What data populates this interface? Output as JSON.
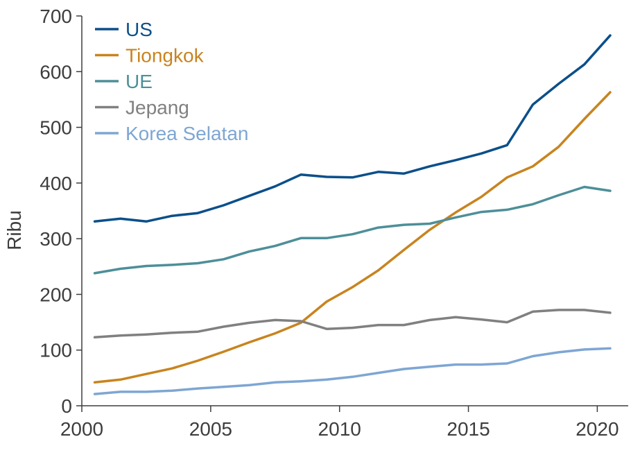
{
  "chart_data": {
    "type": "line",
    "title": "",
    "xlabel": "",
    "ylabel": "Ribu",
    "xlim": [
      2000,
      2021.2
    ],
    "ylim": [
      0,
      700
    ],
    "x_ticks": [
      2000,
      2005,
      2010,
      2015,
      2020
    ],
    "y_ticks": [
      0,
      100,
      200,
      300,
      400,
      500,
      600,
      700
    ],
    "grid": false,
    "legend_position": "top-left",
    "x": [
      2000.5,
      2001.5,
      2002.5,
      2003.5,
      2004.5,
      2005.5,
      2006.5,
      2007.5,
      2008.5,
      2009.5,
      2010.5,
      2011.5,
      2012.5,
      2013.5,
      2014.5,
      2015.5,
      2016.5,
      2017.5,
      2018.5,
      2019.5,
      2020.5
    ],
    "series": [
      {
        "name": "US",
        "color": "#0b4f8a",
        "values": [
          331,
          336,
          331,
          341,
          346,
          360,
          377,
          394,
          415,
          411,
          410,
          420,
          417,
          430,
          441,
          453,
          468,
          541,
          578,
          613,
          665
        ]
      },
      {
        "name": "Tiongkok",
        "color": "#c8841e",
        "values": [
          42,
          47,
          57,
          67,
          81,
          97,
          114,
          130,
          149,
          187,
          213,
          243,
          280,
          316,
          347,
          375,
          410,
          430,
          465,
          515,
          563
        ]
      },
      {
        "name": "UE",
        "color": "#4d8f99",
        "values": [
          238,
          246,
          251,
          253,
          256,
          263,
          277,
          287,
          301,
          301,
          308,
          320,
          325,
          327,
          338,
          348,
          352,
          362,
          378,
          393,
          386
        ]
      },
      {
        "name": "Jepang",
        "color": "#808080",
        "values": [
          123,
          126,
          128,
          131,
          133,
          142,
          149,
          154,
          152,
          138,
          140,
          145,
          145,
          154,
          159,
          155,
          150,
          169,
          172,
          172,
          167
        ]
      },
      {
        "name": "Korea Selatan",
        "color": "#7ea6d3",
        "values": [
          21,
          25,
          25,
          27,
          31,
          34,
          37,
          42,
          44,
          47,
          52,
          59,
          66,
          70,
          74,
          74,
          76,
          89,
          96,
          101,
          103
        ]
      }
    ]
  }
}
